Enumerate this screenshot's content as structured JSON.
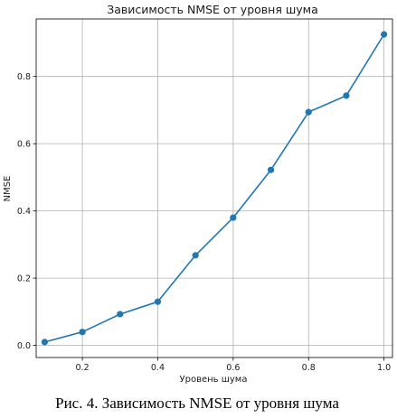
{
  "chart_data": {
    "type": "line",
    "title": "Зависимость NMSE от уровня шума",
    "xlabel": "Уровень шума",
    "ylabel": "NMSE",
    "x": [
      0.1,
      0.2,
      0.3,
      0.4,
      0.5,
      0.6,
      0.7,
      0.8,
      0.9,
      1.0
    ],
    "series": [
      {
        "values": [
          0.01,
          0.04,
          0.093,
          0.13,
          0.268,
          0.38,
          0.522,
          0.694,
          0.743,
          0.925
        ],
        "color": "#1f77b4",
        "marker": "circle"
      }
    ],
    "xlim": [
      0.0775,
      1.0225
    ],
    "ylim": [
      -0.036,
      0.971
    ],
    "xticks": [
      0.2,
      0.4,
      0.6,
      0.8,
      1.0
    ],
    "xtick_labels": [
      "0.2",
      "0.4",
      "0.6",
      "0.8",
      "1.0"
    ],
    "yticks": [
      0.0,
      0.2,
      0.4,
      0.6,
      0.8
    ],
    "ytick_labels": [
      "0.0",
      "0.2",
      "0.4",
      "0.6",
      "0.8"
    ],
    "grid": true,
    "legend": "none"
  },
  "caption": "Рис. 4. Зависимость NMSE от уровня шума"
}
